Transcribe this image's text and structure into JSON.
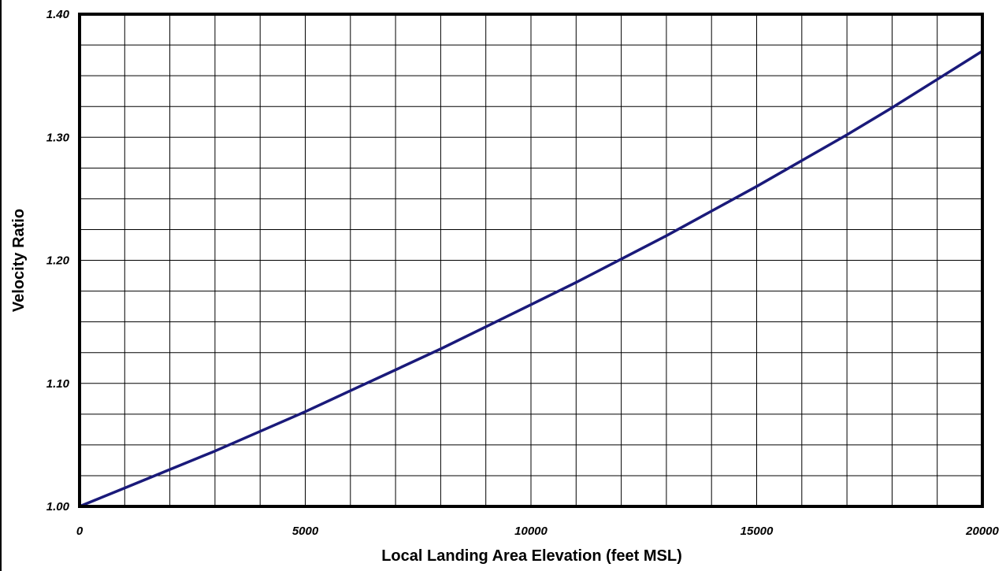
{
  "chart_data": {
    "type": "line",
    "title": "",
    "xlabel": "Local Landing Area Elevation (feet MSL)",
    "ylabel": "Velocity Ratio",
    "xlim": [
      0,
      20000
    ],
    "ylim": [
      1.0,
      1.4
    ],
    "x_ticks": [
      "0",
      "5000",
      "10000",
      "15000",
      "20000"
    ],
    "y_ticks": [
      "1.00",
      "1.10",
      "1.20",
      "1.30",
      "1.40"
    ],
    "grid": true,
    "x_minor_step": 1000,
    "y_minor_step": 0.025,
    "series": [
      {
        "color": "#1a1a7a",
        "x": [
          0,
          1000,
          2000,
          3000,
          4000,
          5000,
          6000,
          7000,
          8000,
          9000,
          10000,
          11000,
          12000,
          13000,
          14000,
          15000,
          16000,
          17000,
          18000,
          19000,
          20000
        ],
        "values": [
          1.0,
          1.015,
          1.03,
          1.045,
          1.061,
          1.077,
          1.094,
          1.111,
          1.128,
          1.146,
          1.164,
          1.182,
          1.201,
          1.22,
          1.24,
          1.26,
          1.281,
          1.302,
          1.324,
          1.347,
          1.37
        ]
      }
    ]
  },
  "colors": {
    "frame": "#000000",
    "grid": "#000000",
    "line": "#1a1a7a",
    "background": "#ffffff"
  }
}
